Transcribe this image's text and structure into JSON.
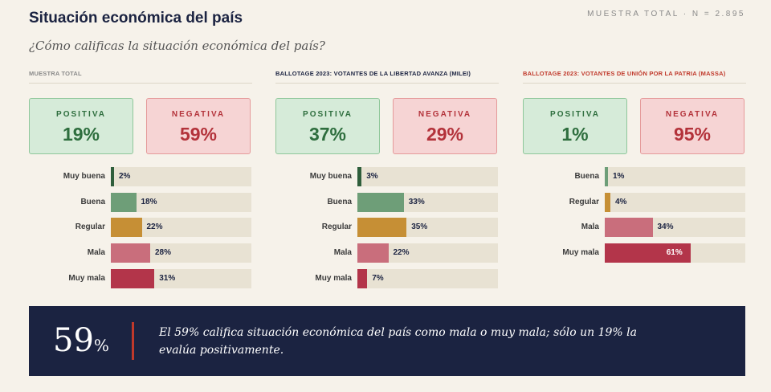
{
  "header": {
    "title": "Situación económica del país",
    "sample": "MUESTRA TOTAL · N = 2.895",
    "question": "¿Cómo calificas la situación económica del país?"
  },
  "colors": {
    "Muy buena": "#2f5e3b",
    "Buena": "#6e9e78",
    "Regular": "#c68f35",
    "Mala": "#c96e7c",
    "Muy mala": "#b3354a"
  },
  "panels": [
    {
      "segment": "MUESTRA TOTAL",
      "segment_color": "gray",
      "positive_label": "POSITIVA",
      "positive_value": "19%",
      "negative_label": "NEGATIVA",
      "negative_value": "59%"
    },
    {
      "segment": "BALLOTAGE 2023: VOTANTES DE LA LIBERTAD AVANZA (MILEI)",
      "segment_color": "navy",
      "positive_label": "POSITIVA",
      "positive_value": "37%",
      "negative_label": "NEGATIVA",
      "negative_value": "29%"
    },
    {
      "segment": "BALLOTAGE 2023: VOTANTES DE UNIÓN POR LA PATRIA (MASSA)",
      "segment_color": "red",
      "positive_label": "POSITIVA",
      "positive_value": "1%",
      "negative_label": "NEGATIVA",
      "negative_value": "95%"
    }
  ],
  "chart_data": [
    {
      "type": "bar",
      "categories": [
        "Muy buena",
        "Buena",
        "Regular",
        "Mala",
        "Muy mala"
      ],
      "values": [
        2,
        18,
        22,
        28,
        31
      ],
      "xlim": [
        0,
        100
      ]
    },
    {
      "type": "bar",
      "categories": [
        "Muy buena",
        "Buena",
        "Regular",
        "Mala",
        "Muy mala"
      ],
      "values": [
        3,
        33,
        35,
        22,
        7
      ],
      "xlim": [
        0,
        100
      ]
    },
    {
      "type": "bar",
      "categories": [
        "Buena",
        "Regular",
        "Mala",
        "Muy mala"
      ],
      "values": [
        1,
        4,
        34,
        61
      ],
      "xlim": [
        0,
        100
      ]
    }
  ],
  "banner": {
    "big_value": "59",
    "big_unit": "%",
    "text": "El 59% califica situación económica del país como mala o muy mala; sólo un 19% la evalúa positivamente."
  }
}
